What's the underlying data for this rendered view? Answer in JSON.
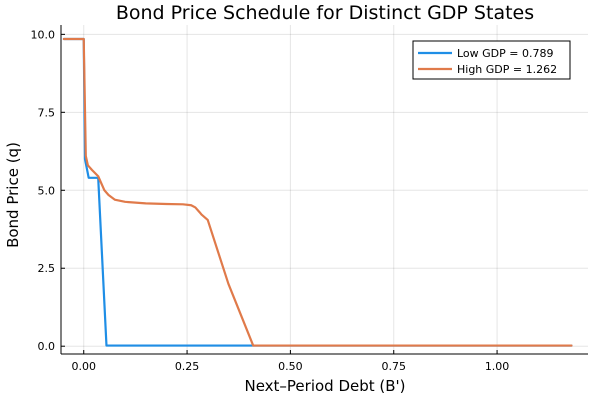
{
  "chart_data": {
    "type": "line",
    "title": "Bond Price Schedule for Distinct GDP States",
    "xlabel": "Next–Period Debt (B')",
    "ylabel": "Bond Price (q)",
    "xlim": [
      -0.055,
      1.22
    ],
    "ylim": [
      -0.25,
      10.3
    ],
    "xticks": [
      0.0,
      0.25,
      0.5,
      0.75,
      1.0
    ],
    "xtick_labels": [
      "0.00",
      "0.25",
      "0.50",
      "0.75",
      "1.00"
    ],
    "yticks": [
      0.0,
      2.5,
      5.0,
      7.5,
      10.0
    ],
    "ytick_labels": [
      "0.0",
      "2.5",
      "5.0",
      "7.5",
      "10.0"
    ],
    "grid": true,
    "legend_position": "top-right",
    "series": [
      {
        "name": "Low GDP = 0.789",
        "color": "#1f8ee6",
        "x": [
          -0.048,
          0.0,
          0.003,
          0.012,
          0.035,
          0.055,
          0.2,
          0.5,
          0.8,
          1.18
        ],
        "y": [
          9.85,
          9.85,
          6.0,
          5.4,
          5.4,
          0.02,
          0.02,
          0.02,
          0.02,
          0.02
        ]
      },
      {
        "name": "High GDP = 1.262",
        "color": "#e07a4a",
        "x": [
          -0.048,
          0.0,
          0.005,
          0.01,
          0.02,
          0.035,
          0.05,
          0.06,
          0.075,
          0.1,
          0.15,
          0.2,
          0.24,
          0.26,
          0.27,
          0.28,
          0.285,
          0.3,
          0.35,
          0.41,
          0.5,
          0.8,
          1.18
        ],
        "y": [
          9.85,
          9.85,
          6.1,
          5.8,
          5.65,
          5.45,
          5.0,
          4.85,
          4.7,
          4.63,
          4.58,
          4.56,
          4.55,
          4.52,
          4.45,
          4.3,
          4.22,
          4.05,
          2.0,
          0.02,
          0.02,
          0.02,
          0.02
        ]
      }
    ]
  }
}
